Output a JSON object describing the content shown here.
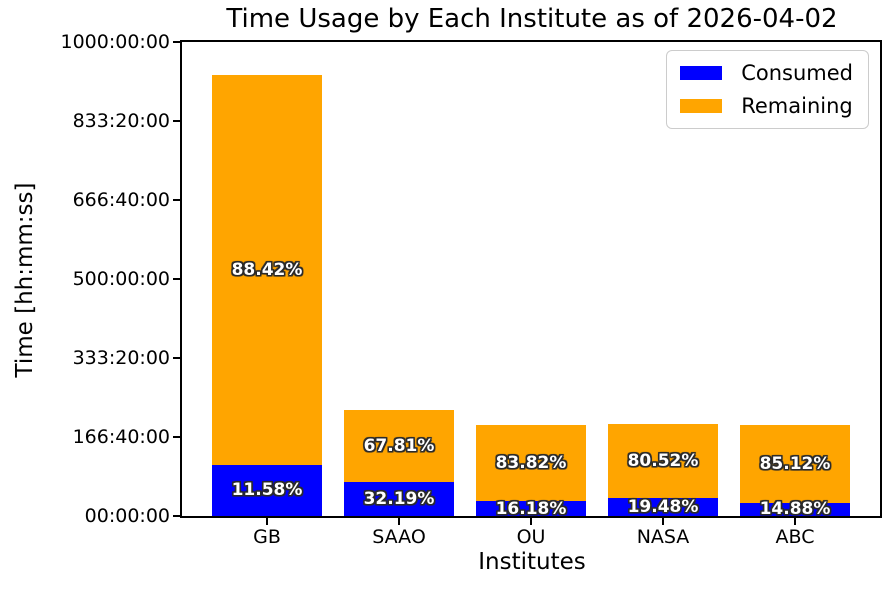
{
  "chart_data": {
    "type": "bar",
    "stacked": true,
    "title": "Time Usage by Each Institute as of 2026-04-02",
    "xlabel": "Institutes",
    "ylabel": "Time [hh:mm:ss]",
    "categories": [
      "GB",
      "SAAO",
      "OU",
      "NASA",
      "ABC"
    ],
    "series": [
      {
        "name": "Consumed",
        "color": "#0000ff",
        "values_hours": [
          107.7,
          71.8,
          31.0,
          37.7,
          28.5
        ],
        "percent_labels": [
          "11.58%",
          "32.19%",
          "16.18%",
          "19.48%",
          "14.88%"
        ]
      },
      {
        "name": "Remaining",
        "color": "#ffa500",
        "values_hours": [
          822.8,
          151.4,
          160.6,
          156.0,
          163.1
        ],
        "percent_labels": [
          "88.42%",
          "67.81%",
          "83.82%",
          "80.52%",
          "85.12%"
        ]
      }
    ],
    "totals_hours": [
      930.5,
      223.2,
      191.6,
      193.7,
      191.6
    ],
    "ylim_hours": [
      0,
      1000
    ],
    "yticks": [
      {
        "hours": 0,
        "label": "00:00:00"
      },
      {
        "hours": 166.6667,
        "label": "166:40:00"
      },
      {
        "hours": 333.3333,
        "label": "333:20:00"
      },
      {
        "hours": 500,
        "label": "500:00:00"
      },
      {
        "hours": 666.6667,
        "label": "666:40:00"
      },
      {
        "hours": 833.3333,
        "label": "833:20:00"
      },
      {
        "hours": 1000,
        "label": "1000:00:00"
      }
    ],
    "legend": {
      "location": "upper-right",
      "entries": [
        {
          "label": "Consumed",
          "color": "#0000ff"
        },
        {
          "label": "Remaining",
          "color": "#ffa500"
        }
      ]
    },
    "grid": false,
    "colors": {
      "consumed": "#0000ff",
      "remaining": "#ffa500",
      "axis": "#000000",
      "background": "#ffffff",
      "legend_border": "#cccccc"
    }
  }
}
